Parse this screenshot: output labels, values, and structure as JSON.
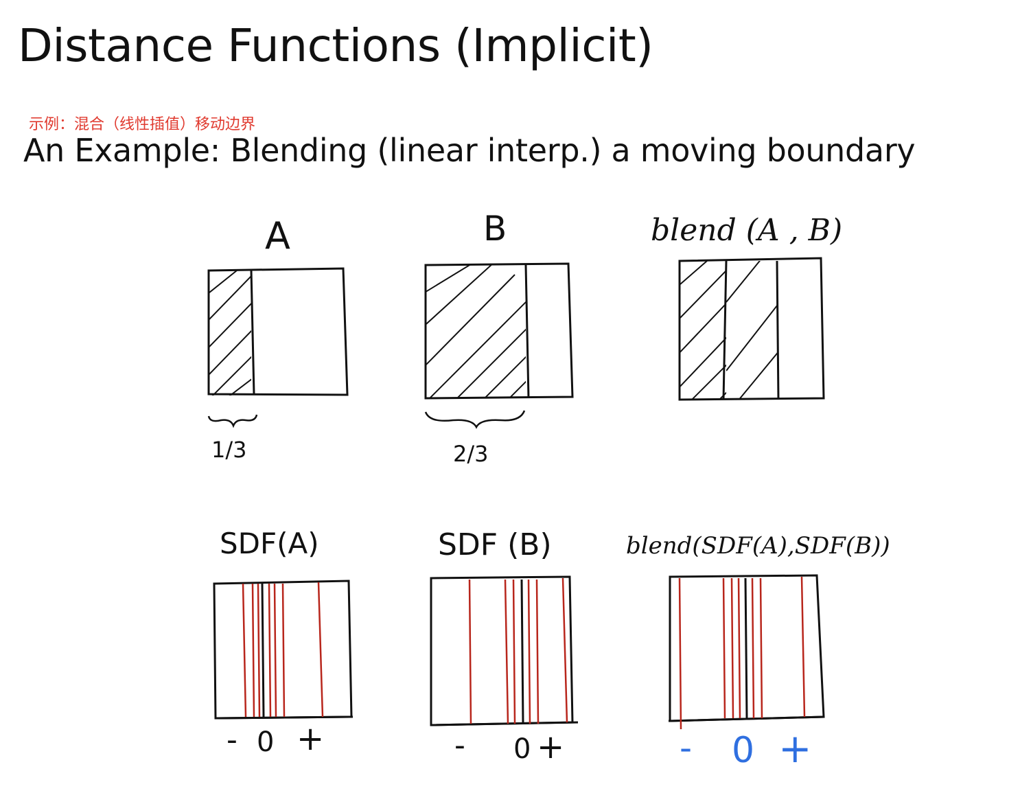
{
  "slide": {
    "title": "Distance Functions (Implicit)",
    "annotation_zh": "示例：混合（线性插值）移动边界",
    "subtitle": "An Example: Blending (linear interp.) a moving boundary"
  },
  "diagram": {
    "top_row": [
      {
        "label": "A",
        "fill_fraction": 0.33,
        "brace_label": "1/3"
      },
      {
        "label": "B",
        "fill_fraction": 0.67,
        "brace_label": "2/3"
      },
      {
        "label": "blend (A , B)"
      }
    ],
    "bottom_row": [
      {
        "label": "SDF(A)",
        "axis": {
          "minus": "-",
          "zero": "0",
          "plus": "+"
        }
      },
      {
        "label": "SDF (B)",
        "axis": {
          "minus": "-",
          "zero": "0",
          "plus": "+"
        }
      },
      {
        "label": "blend(SDF(A),SDF(B))",
        "axis": {
          "minus": "-",
          "zero": "0",
          "plus": "+"
        }
      }
    ]
  },
  "colors": {
    "annotation": "#e03a2f",
    "ink": "#111111",
    "sdf_lines": "#b8261c",
    "blend_axis": "#2f6fe0"
  }
}
